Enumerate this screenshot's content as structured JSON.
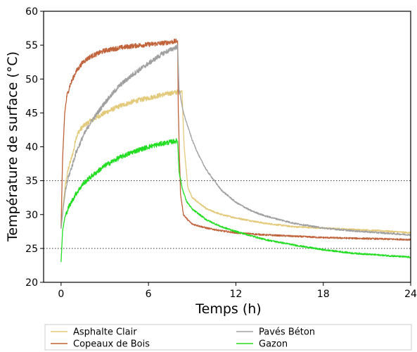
{
  "chart_data": {
    "type": "line",
    "xlabel": "Temps (h)",
    "ylabel": "Température de surface (°C)",
    "xlim": [
      -1.2,
      24
    ],
    "ylim": [
      20,
      60
    ],
    "xticks": [
      0,
      6,
      12,
      18,
      24
    ],
    "yticks": [
      20,
      25,
      30,
      35,
      40,
      45,
      50,
      55,
      60
    ],
    "reference_lines": [
      25,
      35
    ],
    "grid": false,
    "legend_position": "bottom, outside plot, two columns",
    "series": [
      {
        "name": "Asphalte Clair",
        "color": "#e3c97a",
        "x": [
          0,
          0.15,
          0.3,
          0.5,
          0.7,
          0.9,
          1.0,
          1.2,
          1.5,
          2,
          3,
          4,
          5,
          6,
          7,
          8.3,
          8.45,
          8.7,
          9,
          10,
          11,
          12,
          14,
          16,
          18,
          20,
          22,
          24
        ],
        "y": [
          28,
          31.5,
          34.5,
          36.8,
          38.2,
          39.8,
          41.2,
          42.2,
          43.0,
          43.8,
          45.0,
          46.0,
          46.7,
          47.2,
          47.7,
          48.2,
          40,
          34,
          32.5,
          30.8,
          30.0,
          29.5,
          28.7,
          28.2,
          28.0,
          27.8,
          27.6,
          27.3
        ]
      },
      {
        "name": "Copeaux de Bois",
        "color": "#c0623a",
        "x": [
          0,
          0.1,
          0.25,
          0.4,
          0.6,
          0.8,
          1,
          1.5,
          2,
          3,
          4,
          5,
          6,
          7,
          8,
          8.05,
          8.2,
          8.4,
          8.7,
          9,
          10,
          11,
          12,
          14,
          16,
          18,
          20,
          22,
          24
        ],
        "y": [
          28,
          38,
          45,
          47.5,
          49,
          50,
          51,
          52.5,
          53.3,
          54.2,
          54.6,
          54.9,
          55.1,
          55.3,
          55.6,
          45,
          33,
          30,
          29.2,
          28.6,
          28.0,
          27.6,
          27.3,
          27.0,
          26.8,
          26.6,
          26.5,
          26.4,
          26.3
        ]
      },
      {
        "name": "Pavés  Béton",
        "color": "#a0a0a0",
        "x": [
          0,
          0.15,
          0.3,
          0.5,
          0.8,
          1,
          1.5,
          2,
          3,
          4,
          5,
          6,
          7,
          8,
          8.1,
          8.4,
          9,
          9.5,
          10,
          11,
          12,
          13,
          14,
          16,
          18,
          20,
          22,
          24
        ],
        "y": [
          28,
          31,
          33.5,
          35.5,
          37.5,
          39,
          41.5,
          43.5,
          46.5,
          49,
          50.8,
          52.3,
          53.8,
          54.8,
          48.5,
          45,
          41,
          38.5,
          36.5,
          33.6,
          31.8,
          30.6,
          29.8,
          28.7,
          28.0,
          27.6,
          27.3,
          27.0
        ]
      },
      {
        "name": "Gazon",
        "color": "#22dd22",
        "x": [
          0,
          0.1,
          0.25,
          0.5,
          0.75,
          1,
          1.5,
          2,
          3,
          4,
          5,
          6,
          7,
          8,
          8.1,
          8.3,
          8.6,
          9,
          10,
          11,
          12,
          14,
          16,
          18,
          20,
          22,
          24
        ],
        "y": [
          23,
          27.5,
          29.5,
          31,
          32,
          33,
          34.5,
          35.5,
          37.2,
          38.4,
          39.3,
          40.0,
          40.5,
          40.9,
          36.5,
          34,
          32,
          30.8,
          29.2,
          28.2,
          27.5,
          26.3,
          25.5,
          24.8,
          24.3,
          24.0,
          23.7
        ]
      }
    ]
  }
}
